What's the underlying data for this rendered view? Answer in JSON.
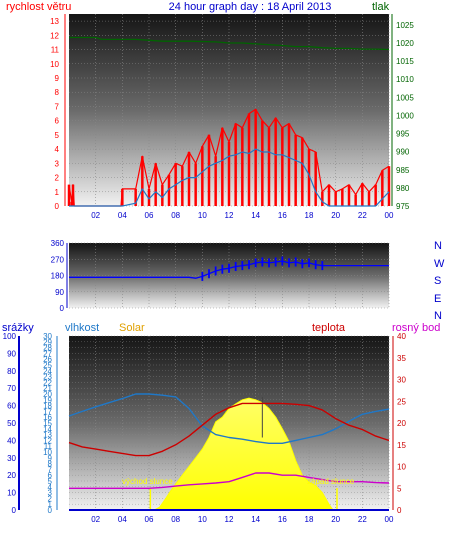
{
  "title": "24 hour graph day : 18 April 2013",
  "colors": {
    "wind_speed": "#ff0000",
    "wind_gust": "#ff0000",
    "pressure": "#006400",
    "wind_dir": "#0000ff",
    "rain": "#0000ff",
    "humidity": "#1f78c8",
    "solar": "#ffff00",
    "temperature": "#cc0000",
    "dewpoint": "#cc00cc",
    "grid": "#888888"
  },
  "chart_data": [
    {
      "type": "line",
      "ylabel_left": "rychlost větru",
      "ylabel_right": "tlak",
      "x_ticks": [
        "02",
        "04",
        "06",
        "08",
        "10",
        "12",
        "14",
        "16",
        "18",
        "20",
        "22",
        "00"
      ],
      "y_left_ticks": [
        "0",
        "1",
        "2",
        "3",
        "4",
        "5",
        "6",
        "7",
        "8",
        "9",
        "10",
        "11",
        "12",
        "13"
      ],
      "y_right_ticks": [
        "975",
        "980",
        "985",
        "990",
        "995",
        "1000",
        "1005",
        "1010",
        "1015",
        "1020",
        "1025"
      ],
      "ylim_left": [
        0,
        13.5
      ],
      "ylim_right": [
        975,
        1028
      ],
      "xlim": [
        0,
        24
      ],
      "series": [
        {
          "key": "gust",
          "axis": "left",
          "x": [
            0,
            0.2,
            0.3,
            0.4,
            3.9,
            4,
            5,
            5.5,
            6,
            6.5,
            7,
            7.5,
            8,
            8.5,
            9,
            9.5,
            10,
            10.5,
            11,
            11.5,
            12,
            12.5,
            13,
            13.5,
            14,
            14.5,
            15,
            15.5,
            16,
            16.5,
            17,
            17.5,
            18,
            18.5,
            19,
            19.5,
            20,
            20.5,
            21,
            21.5,
            22,
            22.5,
            23,
            23.5,
            24
          ],
          "y": [
            1.5,
            0.3,
            1.5,
            0,
            0,
            1.2,
            1.2,
            3.5,
            1.2,
            3,
            1.5,
            2.2,
            3,
            2.8,
            3.8,
            3,
            4.2,
            5,
            3.5,
            5.5,
            4.5,
            5.8,
            5.5,
            6.5,
            6.8,
            6,
            5.5,
            6.2,
            5.5,
            5.8,
            5,
            4.8,
            4,
            3.8,
            1,
            1.5,
            1,
            1.2,
            1.5,
            0.8,
            1.6,
            1,
            1.5,
            2.5,
            2.8
          ]
        },
        {
          "key": "speed",
          "axis": "left",
          "x": [
            0,
            3.9,
            4,
            5,
            5.5,
            6,
            6.5,
            7,
            7.5,
            8,
            8.5,
            9,
            9.5,
            10,
            10.5,
            11,
            11.5,
            12,
            12.5,
            13,
            13.5,
            14,
            14.5,
            15,
            15.5,
            16,
            16.5,
            17,
            17.5,
            18,
            18.5,
            19,
            19.5,
            20,
            21,
            22,
            23,
            23.5,
            24
          ],
          "y": [
            0,
            0,
            0,
            0.2,
            1.2,
            0.5,
            1,
            0.6,
            1.2,
            1.5,
            1.8,
            2,
            2,
            2.4,
            2.8,
            3,
            3.2,
            3.5,
            3.6,
            3.8,
            3.7,
            4,
            3.8,
            3.8,
            3.6,
            3.6,
            3.4,
            3.2,
            3,
            2.2,
            1,
            0.3,
            0,
            0,
            0,
            0,
            0,
            0.5,
            1
          ]
        },
        {
          "key": "pressure",
          "axis": "right",
          "x": [
            0,
            2,
            2.5,
            5,
            7,
            9,
            11,
            12,
            13,
            16,
            17,
            18,
            19,
            20,
            21,
            22,
            23,
            24
          ],
          "y": [
            1021.5,
            1021.5,
            1021,
            1021,
            1020.5,
            1020.5,
            1020.3,
            1020,
            1020,
            1019.3,
            1019,
            1019,
            1018.7,
            1018.5,
            1018.5,
            1018.3,
            1018.3,
            1018.2
          ]
        }
      ]
    },
    {
      "type": "line",
      "y_left_ticks": [
        "0",
        "90",
        "180",
        "270",
        "360"
      ],
      "y_right_labels": [
        "N",
        "W",
        "S",
        "E",
        "N"
      ],
      "ylim": [
        0,
        360
      ],
      "xlim": [
        0,
        24
      ],
      "series": [
        {
          "key": "direction",
          "x": [
            0,
            9,
            9.5,
            10,
            10.5,
            11,
            11.5,
            12,
            12.5,
            13,
            13.5,
            14,
            14.5,
            15,
            15.5,
            16,
            16.5,
            17,
            17.5,
            18,
            18.5,
            19,
            20,
            21,
            22,
            23,
            24
          ],
          "y": [
            170,
            170,
            165,
            175,
            190,
            205,
            215,
            220,
            230,
            235,
            240,
            250,
            255,
            250,
            255,
            260,
            250,
            255,
            245,
            250,
            240,
            235,
            235,
            235,
            235,
            235,
            235
          ]
        }
      ]
    },
    {
      "type": "line",
      "labels": {
        "rain": "srážky",
        "humidity": "vlhkost",
        "solar": "Solar",
        "temperature": "teplota",
        "dewpoint": "rosný bod"
      },
      "annotations": {
        "sunrise": "východ slunce",
        "sunset": "západ slunce"
      },
      "sunrise_x": 6.1,
      "sunset_x": 20.1,
      "x_ticks": [
        "02",
        "04",
        "06",
        "08",
        "10",
        "12",
        "14",
        "16",
        "18",
        "20",
        "22",
        "00"
      ],
      "y_rain_ticks": [
        "0",
        "10",
        "20",
        "30",
        "40",
        "50",
        "60",
        "70",
        "80",
        "90",
        "100"
      ],
      "y_humidity_ticks": [
        "0",
        "1",
        "2",
        "3",
        "4",
        "5",
        "6",
        "7",
        "8",
        "9",
        "10",
        "11",
        "12",
        "13",
        "14",
        "15",
        "16",
        "17",
        "18",
        "19",
        "20",
        "21",
        "22",
        "23",
        "24",
        "25",
        "26",
        "27",
        "28",
        "29",
        "30"
      ],
      "y_temp_ticks": [
        "0",
        "5",
        "10",
        "15",
        "20",
        "25",
        "30",
        "35",
        "40"
      ],
      "ylim_humidity": [
        0,
        30
      ],
      "ylim_temp": [
        0,
        40
      ],
      "xlim": [
        0,
        24
      ],
      "series": [
        {
          "key": "humidity",
          "axis": "humidity",
          "x": [
            0,
            1,
            2,
            3,
            4,
            5,
            6,
            7,
            8,
            9,
            10,
            11,
            12,
            13,
            14,
            15,
            16,
            17,
            18,
            19,
            20,
            21,
            22,
            23,
            24
          ],
          "y": [
            16.2,
            17,
            17.8,
            18.5,
            19.2,
            20,
            20,
            19.8,
            19.5,
            17.5,
            14.5,
            13,
            12.5,
            12.2,
            11.8,
            11.5,
            11.5,
            12,
            12.5,
            13,
            14,
            15.3,
            16.5,
            17,
            17.4
          ]
        },
        {
          "key": "temperature",
          "axis": "temp",
          "x": [
            0,
            1,
            2,
            3,
            4,
            5,
            6,
            7,
            8,
            9,
            10,
            11,
            12,
            13,
            14,
            15,
            16,
            17,
            18,
            19,
            20,
            21,
            22,
            23,
            24
          ],
          "y": [
            15.5,
            14.5,
            14,
            13.5,
            13,
            12.5,
            12.5,
            13.5,
            15,
            17,
            19.5,
            22,
            23.5,
            24.5,
            24.5,
            24.5,
            24.5,
            24.3,
            24,
            23,
            21,
            19.5,
            18.5,
            17,
            16
          ]
        },
        {
          "key": "dewpoint",
          "axis": "temp",
          "x": [
            0,
            2,
            4,
            6,
            7,
            8,
            9,
            10,
            11,
            12,
            13,
            14,
            15,
            16,
            17,
            18,
            19,
            20,
            21,
            22,
            23,
            24
          ],
          "y": [
            5,
            5,
            5,
            5,
            5.2,
            5.5,
            5.8,
            6,
            6.2,
            6.5,
            7.5,
            8.5,
            8.5,
            8,
            8,
            7.5,
            7,
            6.5,
            6.5,
            6.5,
            6.3,
            6.2
          ]
        },
        {
          "key": "solar",
          "axis": "humidity",
          "x": [
            6.4,
            6.8,
            7.2,
            7.6,
            8,
            8.5,
            9,
            9.5,
            10,
            10.5,
            11,
            11.5,
            12,
            12.5,
            13,
            13.5,
            14,
            14.5,
            15,
            15.5,
            16,
            16.5,
            17,
            17.5,
            18,
            18.5,
            19,
            19.5,
            19.8
          ],
          "y": [
            0,
            0.5,
            1.8,
            3.2,
            4.5,
            6,
            7.5,
            9,
            10.5,
            12.5,
            15.2,
            16,
            17.5,
            18.3,
            19,
            19.3,
            19,
            18.5,
            17.5,
            16,
            14,
            11.8,
            8.5,
            6,
            4.8,
            4.2,
            3,
            1,
            0
          ]
        }
      ]
    }
  ]
}
